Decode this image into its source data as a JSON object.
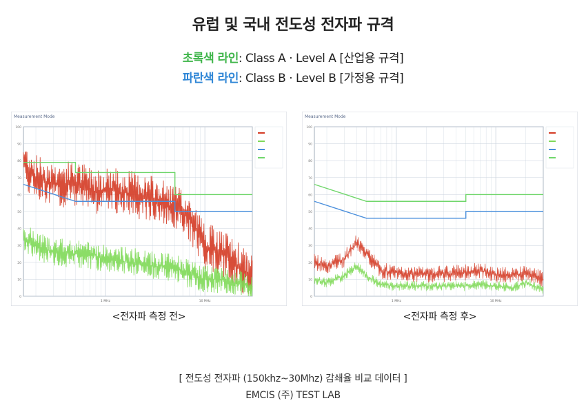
{
  "header": {
    "title": "유럽 및 국내 전도성 전자파 규격"
  },
  "legend": {
    "green": {
      "label": "초록색 라인",
      "text": ": Class A · Level A [산업용 규격]",
      "color": "#6fcf5a"
    },
    "blue": {
      "label": "파란색 라인",
      "text": ": Class B · Level B [가정용 규격]",
      "color": "#4a90d9"
    }
  },
  "colors": {
    "green_limit": "#6fd66a",
    "blue_limit": "#4a8fdc",
    "red_trace": "#d43a24",
    "green_trace": "#7ed957",
    "grid": "#c9d2dc"
  },
  "chart_data": [
    {
      "type": "line",
      "caption": "<전자파 측정 전>",
      "panel_title": "Measurement Mode",
      "x_scale": "log",
      "xlim": [
        0.15,
        30
      ],
      "ylim": [
        0,
        100
      ],
      "x_ticks": [
        "1 MHz",
        "10 MHz"
      ],
      "y_ticks": [
        0,
        10,
        20,
        30,
        40,
        50,
        60,
        70,
        80,
        90,
        100
      ],
      "series": [
        {
          "role": "green-limit",
          "x": [
            0.15,
            0.5,
            0.5,
            5,
            5,
            30
          ],
          "y": [
            79,
            79,
            73,
            73,
            60,
            60
          ]
        },
        {
          "role": "blue-limit",
          "x": [
            0.15,
            0.5,
            5,
            5,
            30
          ],
          "y": [
            66,
            56,
            56,
            50,
            50
          ]
        },
        {
          "role": "red-trace",
          "x": [
            0.15,
            0.2,
            0.3,
            0.5,
            0.8,
            1,
            2,
            3,
            5,
            7,
            10,
            15,
            20,
            30
          ],
          "y": [
            78,
            70,
            66,
            66,
            62,
            63,
            60,
            57,
            52,
            46,
            30,
            25,
            20,
            10
          ]
        },
        {
          "role": "green-trace",
          "x": [
            0.15,
            0.2,
            0.3,
            0.5,
            0.8,
            1,
            2,
            3,
            5,
            7,
            10,
            15,
            20,
            30
          ],
          "y": [
            35,
            30,
            26,
            25,
            24,
            22,
            20,
            18,
            17,
            13,
            10,
            10,
            8,
            6
          ]
        }
      ]
    },
    {
      "type": "line",
      "caption": "<전자파 측정 후>",
      "panel_title": "Measurement Mode",
      "x_scale": "log",
      "xlim": [
        0.15,
        30
      ],
      "ylim": [
        0,
        100
      ],
      "x_ticks": [
        "1 MHz",
        "10 MHz"
      ],
      "y_ticks": [
        0,
        10,
        20,
        30,
        40,
        50,
        60,
        70,
        80,
        90,
        100
      ],
      "series": [
        {
          "role": "green-limit",
          "x": [
            0.15,
            0.5,
            5,
            5,
            30
          ],
          "y": [
            66,
            56,
            56,
            60,
            60
          ]
        },
        {
          "role": "blue-limit",
          "x": [
            0.15,
            0.5,
            5,
            5,
            30
          ],
          "y": [
            56,
            46,
            46,
            50,
            50
          ]
        },
        {
          "role": "red-trace",
          "x": [
            0.15,
            0.2,
            0.3,
            0.4,
            0.5,
            0.7,
            1,
            2,
            3,
            5,
            7,
            10,
            15,
            20,
            30
          ],
          "y": [
            20,
            18,
            22,
            32,
            25,
            15,
            14,
            13,
            13,
            14,
            15,
            13,
            12,
            14,
            10
          ]
        },
        {
          "role": "green-trace",
          "x": [
            0.15,
            0.2,
            0.3,
            0.4,
            0.5,
            0.7,
            1,
            2,
            3,
            5,
            7,
            10,
            15,
            20,
            30
          ],
          "y": [
            10,
            8,
            12,
            18,
            12,
            7,
            6,
            6,
            6,
            6,
            7,
            6,
            5,
            8,
            4
          ]
        }
      ]
    }
  ],
  "footer": {
    "note": "[ 전도성 전자파 (150khz~30Mhz) 감쇄율 비교 데이터 ]",
    "company": "EMCIS (주) TEST LAB"
  }
}
